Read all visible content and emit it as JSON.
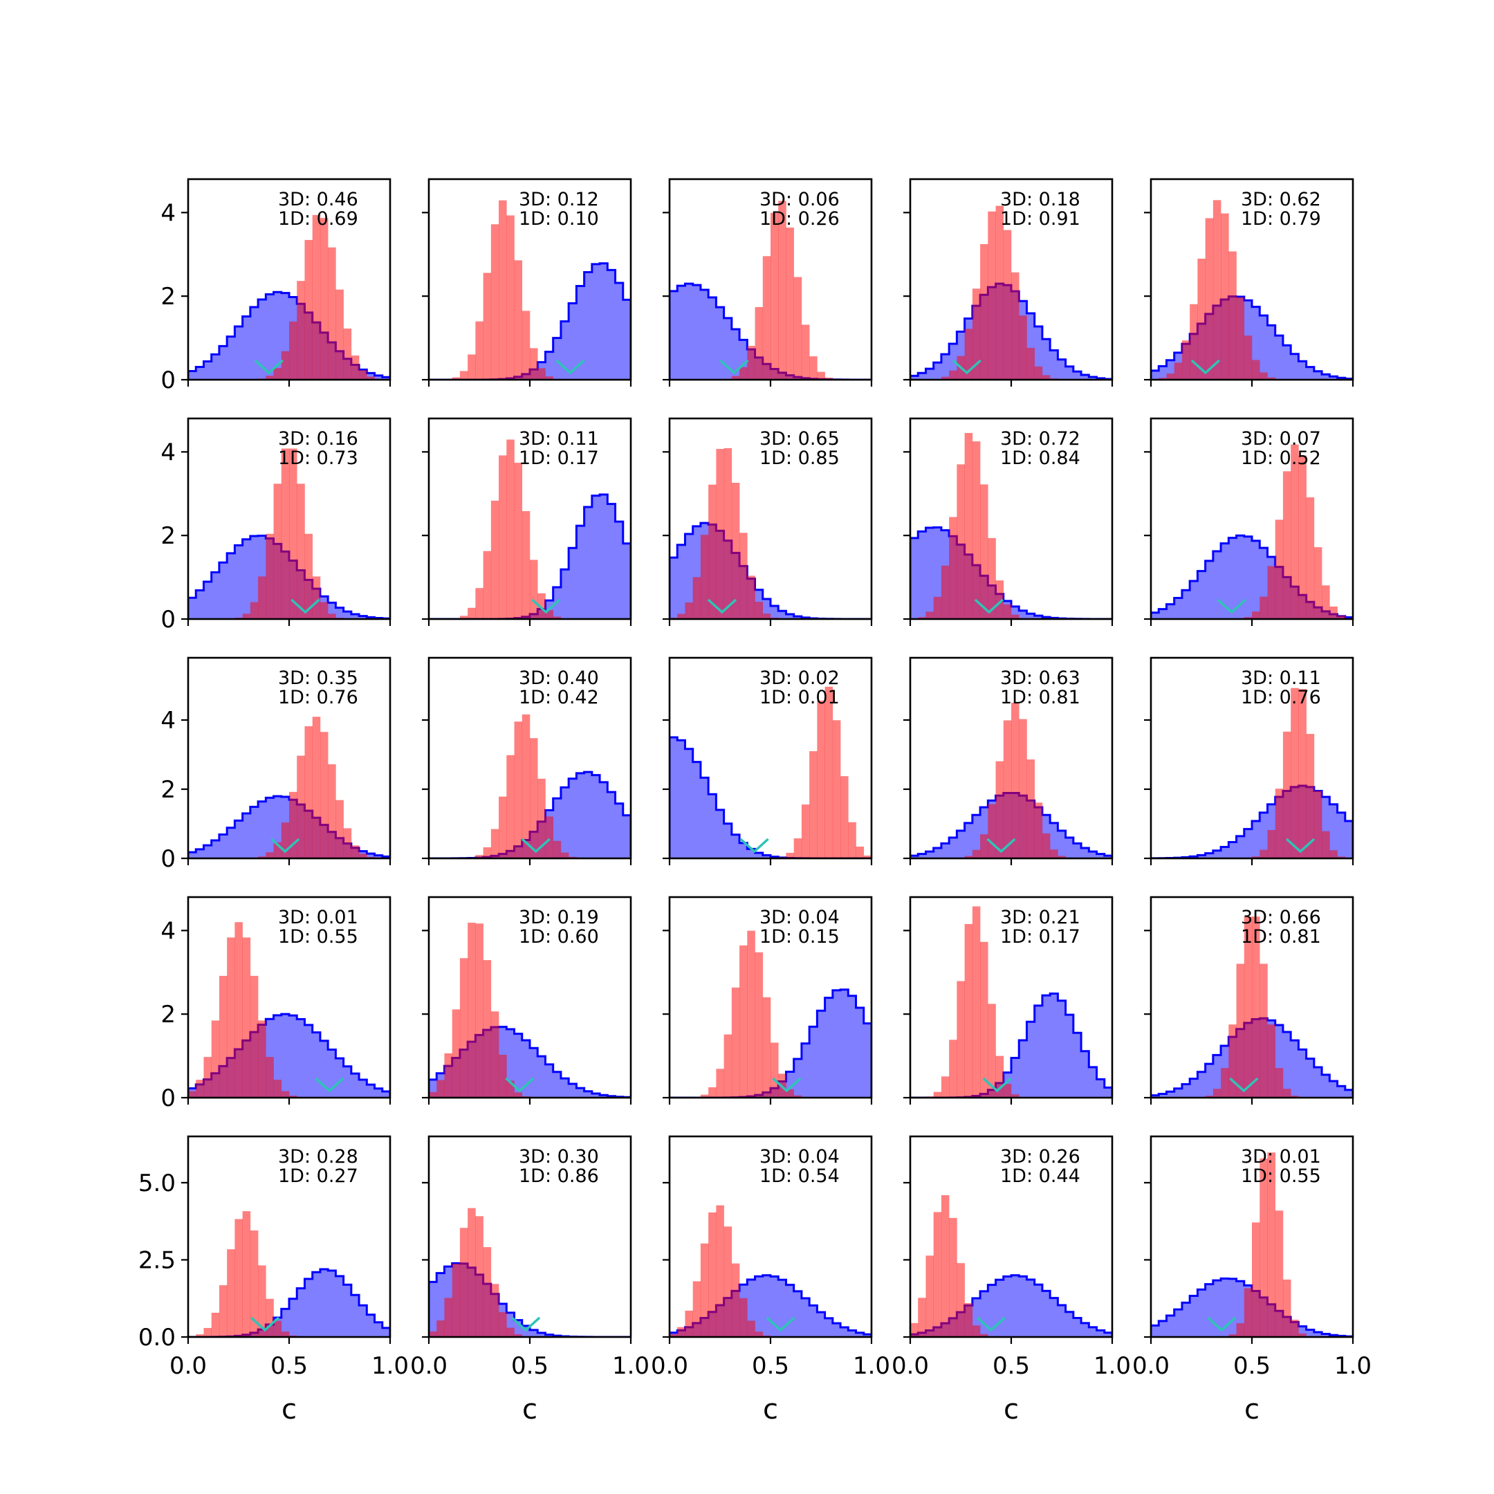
{
  "figure": {
    "rows": 5,
    "cols": 5,
    "colors": {
      "blue_fill": "#0000ff",
      "blue_line": "#0000ff",
      "red_fill": "#ff0000",
      "marker": "#2ec4b6",
      "axes": "#000000",
      "background": "#ffffff"
    }
  },
  "chart_data": {
    "type": "histogram-grid",
    "x_range": [
      0.0,
      1.0
    ],
    "x_ticks": [
      "0.0",
      "0.5",
      "1.0"
    ],
    "xlabel": "c",
    "row_axes": [
      {
        "ylim": [
          0,
          4.8
        ],
        "yticks": [
          0,
          2,
          4
        ],
        "ytick_labels": [
          "0",
          "2",
          "4"
        ]
      },
      {
        "ylim": [
          0,
          4.8
        ],
        "yticks": [
          0,
          2,
          4
        ],
        "ytick_labels": [
          "0",
          "2",
          "4"
        ]
      },
      {
        "ylim": [
          0,
          5.8
        ],
        "yticks": [
          0,
          2,
          4
        ],
        "ytick_labels": [
          "0",
          "2",
          "4"
        ]
      },
      {
        "ylim": [
          0,
          4.8
        ],
        "yticks": [
          0,
          2,
          4
        ],
        "ytick_labels": [
          "0",
          "2",
          "4"
        ]
      },
      {
        "ylim": [
          0,
          6.5
        ],
        "yticks": [
          0,
          2.5,
          5.0
        ],
        "ytick_labels": [
          "0.0",
          "2.5",
          "5.0"
        ]
      }
    ],
    "panels": [
      {
        "row": 0,
        "col": 0,
        "label_3d": "3D: 0.46",
        "label_1d": "1D: 0.69",
        "blue": {
          "mean": 0.45,
          "sd": 0.2,
          "peak": 2.1
        },
        "red": {
          "mean": 0.65,
          "sd": 0.09,
          "peak": 4.0
        },
        "marker": 0.4
      },
      {
        "row": 0,
        "col": 1,
        "label_3d": "3D: 0.12",
        "label_1d": "1D: 0.10",
        "blue": {
          "mean": 0.85,
          "sd": 0.15,
          "peak": 2.8
        },
        "red": {
          "mean": 0.37,
          "sd": 0.08,
          "peak": 4.3
        },
        "marker": 0.7
      },
      {
        "row": 0,
        "col": 2,
        "label_3d": "3D: 0.06",
        "label_1d": "1D: 0.26",
        "blue": {
          "mean": 0.1,
          "sd": 0.2,
          "peak": 2.3
        },
        "red": {
          "mean": 0.55,
          "sd": 0.08,
          "peak": 4.3
        },
        "marker": 0.32
      },
      {
        "row": 0,
        "col": 3,
        "label_3d": "3D: 0.18",
        "label_1d": "1D: 0.91",
        "blue": {
          "mean": 0.45,
          "sd": 0.17,
          "peak": 2.3
        },
        "red": {
          "mean": 0.43,
          "sd": 0.09,
          "peak": 4.2
        },
        "marker": 0.28
      },
      {
        "row": 0,
        "col": 4,
        "label_3d": "3D: 0.62",
        "label_1d": "1D: 0.79",
        "blue": {
          "mean": 0.42,
          "sd": 0.19,
          "peak": 2.0
        },
        "red": {
          "mean": 0.33,
          "sd": 0.09,
          "peak": 4.3
        },
        "marker": 0.27
      },
      {
        "row": 1,
        "col": 0,
        "label_3d": "3D: 0.16",
        "label_1d": "1D: 0.73",
        "blue": {
          "mean": 0.35,
          "sd": 0.2,
          "peak": 2.0
        },
        "red": {
          "mean": 0.5,
          "sd": 0.08,
          "peak": 4.2
        },
        "marker": 0.58
      },
      {
        "row": 1,
        "col": 1,
        "label_3d": "3D: 0.11",
        "label_1d": "1D: 0.17",
        "blue": {
          "mean": 0.85,
          "sd": 0.13,
          "peak": 3.0
        },
        "red": {
          "mean": 0.4,
          "sd": 0.08,
          "peak": 4.3
        },
        "marker": 0.58
      },
      {
        "row": 1,
        "col": 2,
        "label_3d": "3D: 0.65",
        "label_1d": "1D: 0.85",
        "blue": {
          "mean": 0.18,
          "sd": 0.17,
          "peak": 2.3
        },
        "red": {
          "mean": 0.27,
          "sd": 0.08,
          "peak": 4.2
        },
        "marker": 0.26
      },
      {
        "row": 1,
        "col": 3,
        "label_3d": "3D: 0.72",
        "label_1d": "1D: 0.84",
        "blue": {
          "mean": 0.12,
          "sd": 0.2,
          "peak": 2.2
        },
        "red": {
          "mean": 0.3,
          "sd": 0.08,
          "peak": 4.5
        },
        "marker": 0.39
      },
      {
        "row": 1,
        "col": 4,
        "label_3d": "3D: 0.07",
        "label_1d": "1D: 0.52",
        "blue": {
          "mean": 0.45,
          "sd": 0.19,
          "peak": 2.0
        },
        "red": {
          "mean": 0.72,
          "sd": 0.08,
          "peak": 4.2
        },
        "marker": 0.4
      },
      {
        "row": 2,
        "col": 0,
        "label_3d": "3D: 0.35",
        "label_1d": "1D: 0.76",
        "blue": {
          "mean": 0.45,
          "sd": 0.2,
          "peak": 1.8
        },
        "red": {
          "mean": 0.63,
          "sd": 0.09,
          "peak": 4.1
        },
        "marker": 0.48
      },
      {
        "row": 2,
        "col": 1,
        "label_3d": "3D: 0.40",
        "label_1d": "1D: 0.42",
        "blue": {
          "mean": 0.78,
          "sd": 0.17,
          "peak": 2.5
        },
        "red": {
          "mean": 0.47,
          "sd": 0.08,
          "peak": 4.2
        },
        "marker": 0.53
      },
      {
        "row": 2,
        "col": 2,
        "label_3d": "3D: 0.02",
        "label_1d": "1D: 0.01",
        "blue": {
          "mean": 0.02,
          "sd": 0.17,
          "peak": 3.5
        },
        "red": {
          "mean": 0.78,
          "sd": 0.07,
          "peak": 5.0
        },
        "marker": 0.42
      },
      {
        "row": 2,
        "col": 3,
        "label_3d": "3D: 0.63",
        "label_1d": "1D: 0.81",
        "blue": {
          "mean": 0.5,
          "sd": 0.19,
          "peak": 1.9
        },
        "red": {
          "mean": 0.52,
          "sd": 0.08,
          "peak": 4.5
        },
        "marker": 0.45
      },
      {
        "row": 2,
        "col": 4,
        "label_3d": "3D: 0.11",
        "label_1d": "1D: 0.76",
        "blue": {
          "mean": 0.75,
          "sd": 0.2,
          "peak": 2.1
        },
        "red": {
          "mean": 0.73,
          "sd": 0.07,
          "peak": 5.1
        },
        "marker": 0.74
      },
      {
        "row": 3,
        "col": 0,
        "label_3d": "3D: 0.01",
        "label_1d": "1D: 0.55",
        "blue": {
          "mean": 0.48,
          "sd": 0.22,
          "peak": 2.0
        },
        "red": {
          "mean": 0.25,
          "sd": 0.09,
          "peak": 4.2
        },
        "marker": 0.7
      },
      {
        "row": 3,
        "col": 1,
        "label_3d": "3D: 0.19",
        "label_1d": "1D: 0.60",
        "blue": {
          "mean": 0.35,
          "sd": 0.2,
          "peak": 1.7
        },
        "red": {
          "mean": 0.23,
          "sd": 0.08,
          "peak": 4.3
        },
        "marker": 0.45
      },
      {
        "row": 3,
        "col": 2,
        "label_3d": "3D: 0.04",
        "label_1d": "1D: 0.15",
        "blue": {
          "mean": 0.85,
          "sd": 0.15,
          "peak": 2.6
        },
        "red": {
          "mean": 0.4,
          "sd": 0.08,
          "peak": 4.0
        },
        "marker": 0.58
      },
      {
        "row": 3,
        "col": 3,
        "label_3d": "3D: 0.21",
        "label_1d": "1D: 0.17",
        "blue": {
          "mean": 0.7,
          "sd": 0.13,
          "peak": 2.5
        },
        "red": {
          "mean": 0.32,
          "sd": 0.07,
          "peak": 4.6
        },
        "marker": 0.43
      },
      {
        "row": 3,
        "col": 4,
        "label_3d": "3D: 0.66",
        "label_1d": "1D: 0.81",
        "blue": {
          "mean": 0.55,
          "sd": 0.2,
          "peak": 1.9
        },
        "red": {
          "mean": 0.5,
          "sd": 0.07,
          "peak": 4.5
        },
        "marker": 0.46
      },
      {
        "row": 4,
        "col": 0,
        "label_3d": "3D: 0.28",
        "label_1d": "1D: 0.27",
        "blue": {
          "mean": 0.68,
          "sd": 0.15,
          "peak": 2.2
        },
        "red": {
          "mean": 0.28,
          "sd": 0.08,
          "peak": 4.1
        },
        "marker": 0.38
      },
      {
        "row": 4,
        "col": 1,
        "label_3d": "3D: 0.30",
        "label_1d": "1D: 0.86",
        "blue": {
          "mean": 0.15,
          "sd": 0.17,
          "peak": 2.4
        },
        "red": {
          "mean": 0.22,
          "sd": 0.08,
          "peak": 4.2
        },
        "marker": 0.48
      },
      {
        "row": 4,
        "col": 2,
        "label_3d": "3D: 0.04",
        "label_1d": "1D: 0.54",
        "blue": {
          "mean": 0.48,
          "sd": 0.2,
          "peak": 2.0
        },
        "red": {
          "mean": 0.24,
          "sd": 0.08,
          "peak": 4.3
        },
        "marker": 0.55
      },
      {
        "row": 4,
        "col": 3,
        "label_3d": "3D: 0.26",
        "label_1d": "1D: 0.44",
        "blue": {
          "mean": 0.52,
          "sd": 0.2,
          "peak": 2.0
        },
        "red": {
          "mean": 0.17,
          "sd": 0.07,
          "peak": 4.6
        },
        "marker": 0.4
      },
      {
        "row": 4,
        "col": 4,
        "label_3d": "3D: 0.01",
        "label_1d": "1D: 0.55",
        "blue": {
          "mean": 0.38,
          "sd": 0.2,
          "peak": 1.9
        },
        "red": {
          "mean": 0.58,
          "sd": 0.06,
          "peak": 6.2
        },
        "marker": 0.35
      }
    ]
  }
}
